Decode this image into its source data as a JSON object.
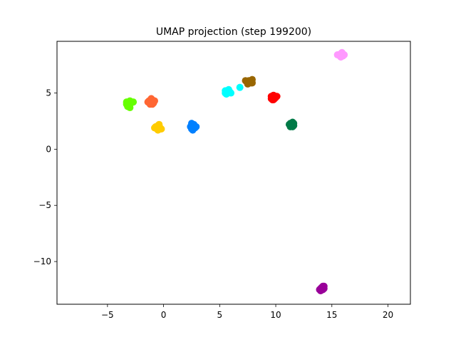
{
  "chart_data": {
    "type": "scatter",
    "title": "UMAP projection (step 199200)",
    "xlabel": "",
    "ylabel": "",
    "xlim": [
      -9.5,
      22
    ],
    "ylim": [
      -13.8,
      9.6
    ],
    "xticks": [
      -5,
      0,
      5,
      10,
      15,
      20
    ],
    "yticks": [
      5,
      0,
      -5,
      -10
    ],
    "grid": false,
    "legend": "none",
    "clusters": [
      {
        "color": "#66ff00",
        "center": [
          -3.1,
          4.0
        ],
        "points": [
          [
            -3.3,
            4.2
          ],
          [
            -3.1,
            3.9
          ],
          [
            -2.9,
            4.1
          ],
          [
            -3.2,
            3.8
          ],
          [
            -2.7,
            4.2
          ],
          [
            -3.0,
            3.7
          ],
          [
            -3.3,
            4.0
          ],
          [
            -3.0,
            4.3
          ]
        ]
      },
      {
        "color": "#ff6633",
        "center": [
          -1.1,
          4.2
        ],
        "points": [
          [
            -1.3,
            4.3
          ],
          [
            -1.0,
            4.4
          ],
          [
            -0.9,
            4.1
          ],
          [
            -1.2,
            4.0
          ],
          [
            -1.1,
            4.5
          ],
          [
            -0.8,
            4.3
          ],
          [
            -1.4,
            4.2
          ],
          [
            -1.0,
            4.0
          ]
        ]
      },
      {
        "color": "#ffcc00",
        "center": [
          -0.5,
          1.9
        ],
        "points": [
          [
            -0.7,
            2.0
          ],
          [
            -0.5,
            2.1
          ],
          [
            -0.3,
            1.9
          ],
          [
            -0.6,
            1.8
          ],
          [
            -0.4,
            2.2
          ],
          [
            -0.2,
            1.8
          ],
          [
            -0.8,
            1.9
          ],
          [
            -0.5,
            1.7
          ]
        ]
      },
      {
        "color": "#0080ff",
        "center": [
          2.6,
          2.0
        ],
        "points": [
          [
            2.5,
            2.3
          ],
          [
            2.7,
            2.2
          ],
          [
            2.8,
            1.9
          ],
          [
            2.5,
            1.8
          ],
          [
            2.6,
            2.1
          ],
          [
            2.9,
            2.0
          ],
          [
            2.4,
            2.0
          ],
          [
            2.6,
            1.7
          ]
        ]
      },
      {
        "color": "#00ffff",
        "center": [
          5.7,
          5.1
        ],
        "points": [
          [
            5.5,
            5.0
          ],
          [
            5.7,
            5.2
          ],
          [
            5.9,
            5.1
          ],
          [
            5.6,
            4.9
          ],
          [
            5.8,
            5.3
          ],
          [
            5.5,
            5.2
          ],
          [
            6.0,
            5.0
          ],
          [
            5.7,
            5.0
          ],
          [
            6.8,
            5.5
          ]
        ]
      },
      {
        "color": "#996600",
        "center": [
          7.6,
          6.0
        ],
        "points": [
          [
            7.4,
            6.0
          ],
          [
            7.6,
            6.1
          ],
          [
            7.8,
            5.9
          ],
          [
            7.9,
            6.2
          ],
          [
            7.5,
            5.8
          ],
          [
            7.7,
            6.0
          ],
          [
            7.3,
            6.1
          ],
          [
            7.9,
            5.9
          ]
        ]
      },
      {
        "color": "#ff0000",
        "center": [
          9.8,
          4.6
        ],
        "points": [
          [
            9.6,
            4.7
          ],
          [
            9.8,
            4.8
          ],
          [
            10.0,
            4.6
          ],
          [
            9.7,
            4.4
          ],
          [
            9.9,
            4.5
          ],
          [
            9.6,
            4.5
          ],
          [
            10.1,
            4.7
          ],
          [
            9.8,
            4.4
          ]
        ]
      },
      {
        "color": "#007a47",
        "center": [
          11.4,
          2.2
        ],
        "points": [
          [
            11.3,
            2.3
          ],
          [
            11.5,
            2.4
          ],
          [
            11.6,
            2.1
          ],
          [
            11.3,
            2.0
          ],
          [
            11.4,
            2.2
          ],
          [
            11.6,
            2.3
          ],
          [
            11.2,
            2.2
          ],
          [
            11.5,
            2.0
          ]
        ]
      },
      {
        "color": "#ff99ff",
        "center": [
          15.8,
          8.4
        ],
        "points": [
          [
            15.6,
            8.4
          ],
          [
            15.8,
            8.5
          ],
          [
            16.0,
            8.3
          ],
          [
            15.7,
            8.3
          ],
          [
            15.9,
            8.6
          ],
          [
            16.1,
            8.4
          ],
          [
            15.5,
            8.4
          ],
          [
            15.8,
            8.2
          ]
        ]
      },
      {
        "color": "#990099",
        "center": [
          14.1,
          -12.3
        ],
        "points": [
          [
            14.0,
            -12.4
          ],
          [
            14.2,
            -12.2
          ],
          [
            14.3,
            -12.4
          ],
          [
            14.0,
            -12.6
          ],
          [
            14.1,
            -12.3
          ],
          [
            14.3,
            -12.2
          ],
          [
            13.9,
            -12.5
          ],
          [
            14.2,
            -12.5
          ]
        ]
      }
    ]
  }
}
